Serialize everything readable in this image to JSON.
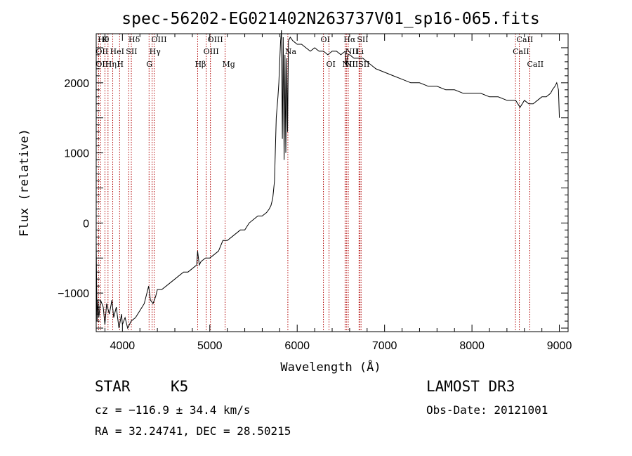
{
  "chart_data": {
    "type": "line",
    "title": "spec-56202-EG021402N263737V01_sp16-065.fits",
    "xlabel": "Wavelength (Å)",
    "ylabel": "Flux (relative)",
    "xlim": [
      3700,
      9100
    ],
    "ylim": [
      -1550,
      2700
    ],
    "xticks": [
      4000,
      5000,
      6000,
      7000,
      8000,
      9000
    ],
    "yticks": [
      -1000,
      0,
      1000,
      2000
    ],
    "grid": false,
    "series": [
      {
        "color": "#000000",
        "x": [
          3700,
          3710,
          3720,
          3730,
          3750,
          3780,
          3800,
          3820,
          3850,
          3880,
          3900,
          3930,
          3960,
          3990,
          4000,
          4030,
          4060,
          4100,
          4150,
          4200,
          4250,
          4280,
          4300,
          4320,
          4350,
          4380,
          4400,
          4450,
          4500,
          4550,
          4600,
          4650,
          4700,
          4750,
          4800,
          4850,
          4860,
          4880,
          4900,
          4950,
          5000,
          5050,
          5100,
          5150,
          5200,
          5250,
          5300,
          5350,
          5400,
          5450,
          5500,
          5550,
          5600,
          5650,
          5680,
          5700,
          5720,
          5740,
          5760,
          5780,
          5790,
          5800,
          5810,
          5820,
          5830,
          5840,
          5850,
          5860,
          5870,
          5880,
          5890,
          5900,
          5920,
          5950,
          6000,
          6050,
          6100,
          6150,
          6200,
          6250,
          6300,
          6350,
          6400,
          6450,
          6500,
          6550,
          6560,
          6580,
          6600,
          6650,
          6700,
          6750,
          6800,
          6850,
          6900,
          7000,
          7100,
          7200,
          7300,
          7400,
          7500,
          7600,
          7700,
          7800,
          7900,
          8000,
          8100,
          8200,
          8300,
          8400,
          8500,
          8550,
          8600,
          8650,
          8700,
          8750,
          8800,
          8850,
          8900,
          8920,
          8950,
          8970,
          8990,
          9000
        ],
        "y": [
          -300,
          -1400,
          -1100,
          -1350,
          -1100,
          -1200,
          -1450,
          -1150,
          -1300,
          -1100,
          -1350,
          -1200,
          -1500,
          -1300,
          -1450,
          -1350,
          -1500,
          -1400,
          -1350,
          -1250,
          -1150,
          -1000,
          -900,
          -1100,
          -1150,
          -1050,
          -950,
          -950,
          -900,
          -850,
          -800,
          -750,
          -700,
          -700,
          -650,
          -600,
          -400,
          -600,
          -550,
          -500,
          -500,
          -450,
          -400,
          -250,
          -250,
          -200,
          -150,
          -100,
          -100,
          0,
          50,
          100,
          100,
          150,
          200,
          250,
          350,
          600,
          1500,
          1800,
          2000,
          2300,
          2600,
          2750,
          1200,
          2650,
          900,
          2400,
          1000,
          2350,
          1300,
          2600,
          2650,
          2600,
          2550,
          2550,
          2500,
          2450,
          2500,
          2450,
          2450,
          2400,
          2450,
          2450,
          2400,
          2450,
          2250,
          2400,
          2400,
          2350,
          2350,
          2350,
          2300,
          2250,
          2200,
          2150,
          2100,
          2050,
          2000,
          2000,
          1950,
          1950,
          1900,
          1900,
          1850,
          1850,
          1850,
          1800,
          1800,
          1750,
          1750,
          1650,
          1750,
          1700,
          1700,
          1750,
          1800,
          1800,
          1850,
          1900,
          1950,
          2000,
          1900,
          1500
        ]
      }
    ],
    "line_markers": [
      {
        "wavelength": 3750,
        "label": "Hθ",
        "row": 0
      },
      {
        "wavelength": 3800,
        "label": "K",
        "row": 0
      },
      {
        "wavelength": 4102,
        "label": "Hδ",
        "row": 0
      },
      {
        "wavelength": 4363,
        "label": "OIII",
        "row": 0
      },
      {
        "wavelength": 5007,
        "label": "OIII",
        "row": 0
      },
      {
        "wavelength": 6300,
        "label": "OI",
        "row": 0
      },
      {
        "wavelength": 6563,
        "label": "Hα",
        "row": 0
      },
      {
        "wavelength": 6716,
        "label": "SII",
        "row": 0
      },
      {
        "wavelength": 8542,
        "label": "CaII",
        "row": 0
      },
      {
        "wavelength": 3727,
        "label": "OII",
        "row": 1
      },
      {
        "wavelength": 3889,
        "label": "HeI",
        "row": 1
      },
      {
        "wavelength": 4072,
        "label": "SII",
        "row": 1
      },
      {
        "wavelength": 4340,
        "label": "Hγ",
        "row": 1
      },
      {
        "wavelength": 4959,
        "label": "OIII",
        "row": 1
      },
      {
        "wavelength": 5893,
        "label": "Na",
        "row": 1
      },
      {
        "wavelength": 6583,
        "label": "NII",
        "row": 1
      },
      {
        "wavelength": 6708,
        "label": "Li",
        "row": 1
      },
      {
        "wavelength": 8498,
        "label": "CaII",
        "row": 1
      },
      {
        "wavelength": 3727,
        "label": "OII",
        "row": 2
      },
      {
        "wavelength": 3835,
        "label": "Hη",
        "row": 2
      },
      {
        "wavelength": 3968,
        "label": "H",
        "row": 2
      },
      {
        "wavelength": 4305,
        "label": "G",
        "row": 2
      },
      {
        "wavelength": 4861,
        "label": "Hβ",
        "row": 2
      },
      {
        "wavelength": 5175,
        "label": "Mg",
        "row": 2
      },
      {
        "wavelength": 6364,
        "label": "OI",
        "row": 2
      },
      {
        "wavelength": 6548,
        "label": "NII",
        "row": 2
      },
      {
        "wavelength": 6583,
        "label": "NII",
        "row": 2
      },
      {
        "wavelength": 6731,
        "label": "SII",
        "row": 2
      },
      {
        "wavelength": 8662,
        "label": "CaII",
        "row": 2
      }
    ]
  },
  "info": {
    "object_class": "STAR",
    "subclass": "K5",
    "survey": "LAMOST DR3",
    "velocity": "cz = −116.9 ± 34.4 km/s",
    "obs_date": "Obs-Date: 20121001",
    "coords": "RA =  32.24741, DEC =  28.50215"
  }
}
